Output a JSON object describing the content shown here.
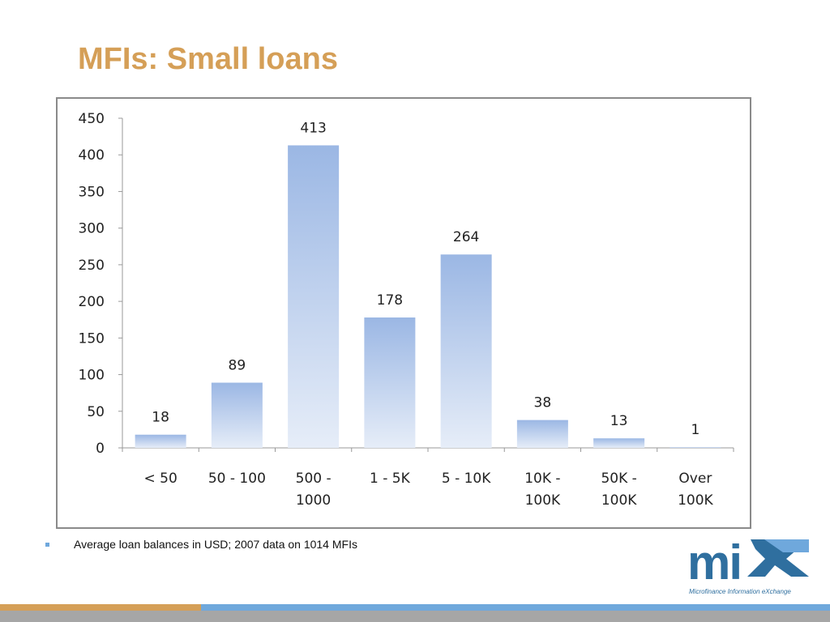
{
  "title": "MFIs: Small loans",
  "caption": "Average loan balances in USD; 2007 data on 1014 MFIs",
  "logo": {
    "text": "mix",
    "subtitle": "Microfinance Information eXchange"
  },
  "colors": {
    "title": "#d59f57",
    "bar_top": "#9bb7e4",
    "bar_bottom": "#e6edf8",
    "band_orange": "#d59f57",
    "band_blue": "#6fa8dc"
  },
  "chart_data": {
    "type": "bar",
    "categories": [
      [
        "< 50"
      ],
      [
        "50 - 100"
      ],
      [
        "500 -",
        "1000"
      ],
      [
        "1 - 5K"
      ],
      [
        "5 - 10K"
      ],
      [
        "10K -",
        "100K"
      ],
      [
        "50K -",
        "100K"
      ],
      [
        "Over",
        "100K"
      ]
    ],
    "values": [
      18,
      89,
      413,
      178,
      264,
      38,
      13,
      1
    ],
    "yticks": [
      0,
      50,
      100,
      150,
      200,
      250,
      300,
      350,
      400,
      450
    ],
    "ylim": [
      0,
      450
    ],
    "title": "",
    "xlabel": "",
    "ylabel": "",
    "grid": false,
    "data_labels": true
  }
}
